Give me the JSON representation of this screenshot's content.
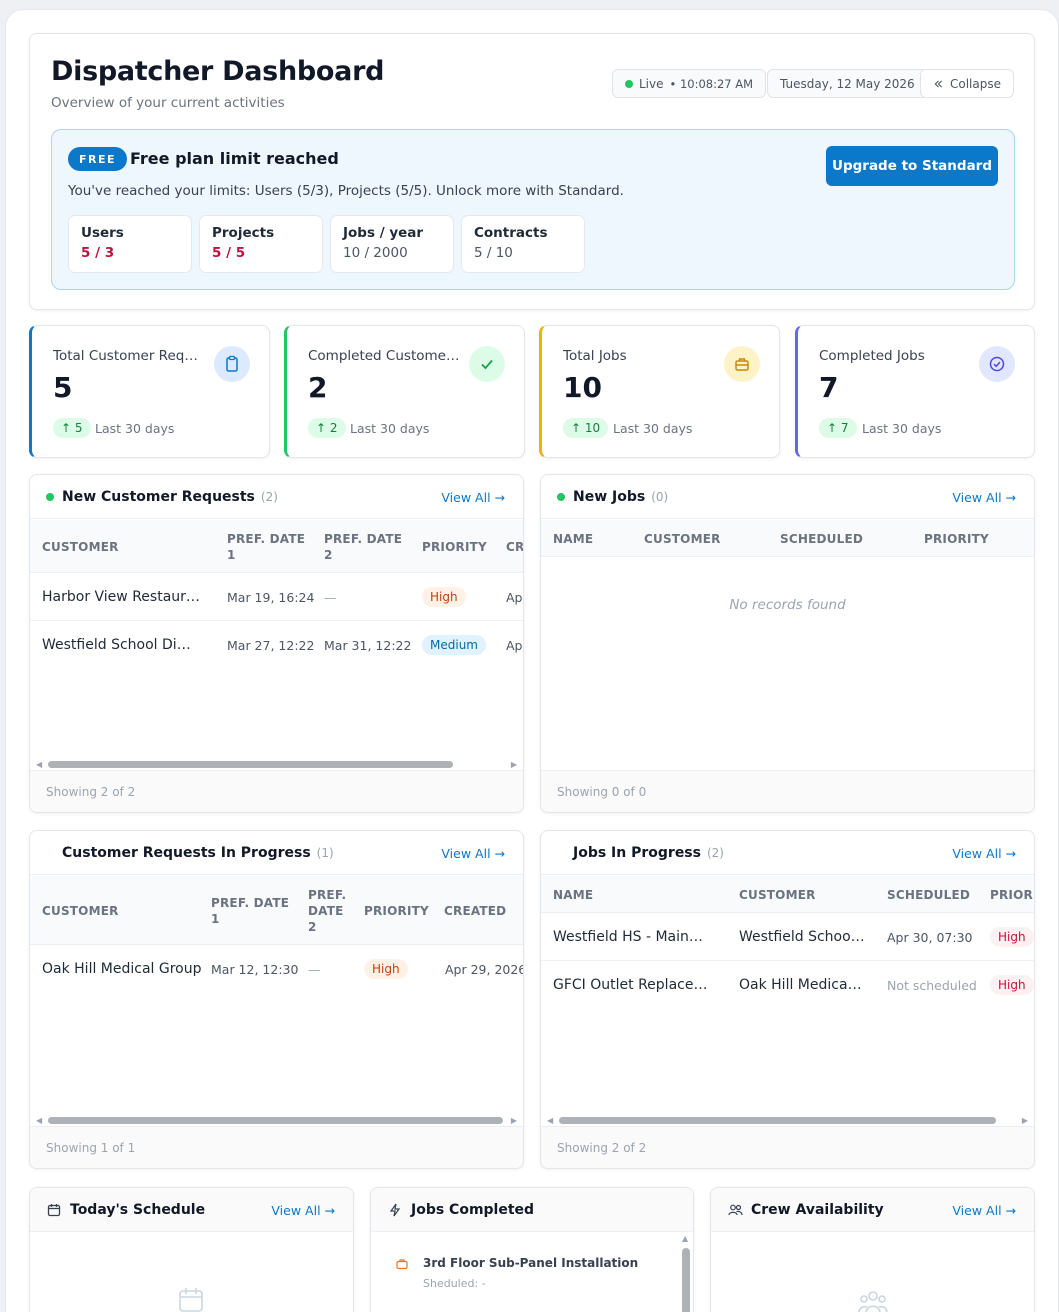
{
  "header": {
    "title": "Dispatcher Dashboard",
    "subtitle": "Overview of your current activities",
    "live_label": "Live",
    "live_time": "• 10:08:27 AM",
    "date": "Tuesday, 12 May 2026",
    "collapse_label": "Collapse"
  },
  "plan": {
    "badge": "FREE",
    "title": "Free plan limit reached",
    "message": "You've reached your limits: Users (5/3), Projects (5/5). Unlock more with Standard.",
    "upgrade_label": "Upgrade to Standard",
    "limits": [
      {
        "label": "Users",
        "value": "5 / 3",
        "over": true
      },
      {
        "label": "Projects",
        "value": "5 / 5",
        "over": true
      },
      {
        "label": "Jobs / year",
        "value": "10 / 2000",
        "over": false
      },
      {
        "label": "Contracts",
        "value": "5 / 10",
        "over": false
      }
    ]
  },
  "stats": [
    {
      "label": "Total Customer Requests",
      "value": "5",
      "delta": "↑ 5",
      "period": "Last 30 days",
      "accent": "#0b78c9",
      "icon": "clipboard-icon"
    },
    {
      "label": "Completed Customer Requests",
      "value": "2",
      "delta": "↑ 2",
      "period": "Last 30 days",
      "accent": "#22c55e",
      "icon": "check-icon"
    },
    {
      "label": "Total Jobs",
      "value": "10",
      "delta": "↑ 10",
      "period": "Last 30 days",
      "accent": "#eab308",
      "icon": "toolbox-icon"
    },
    {
      "label": "Completed Jobs",
      "value": "7",
      "delta": "↑ 7",
      "period": "Last 30 days",
      "accent": "#6366f1",
      "icon": "check-circle-icon"
    }
  ],
  "new_requests": {
    "title": "New Customer Requests",
    "count": "(2)",
    "view_all": "View All →",
    "columns": [
      "CUSTOMER",
      "PREF. DATE 1",
      "PREF. DATE 2",
      "PRIORITY",
      "CR"
    ],
    "rows": [
      {
        "customer": "Harbor View Restaurant Group",
        "date1": "Mar 19, 16:24",
        "date2": "—",
        "priority": "High",
        "created": "Apr"
      },
      {
        "customer": "Westfield School District",
        "date1": "Mar 27, 12:22",
        "date2": "Mar 31, 12:22",
        "priority": "Medium",
        "created": "Apr"
      }
    ],
    "footer": "Showing 2 of 2"
  },
  "new_jobs": {
    "title": "New Jobs",
    "count": "(0)",
    "view_all": "View All →",
    "columns": [
      "NAME",
      "CUSTOMER",
      "SCHEDULED",
      "PRIORITY"
    ],
    "empty": "No records found",
    "footer": "Showing 0 of 0"
  },
  "requests_in_progress": {
    "title": "Customer Requests In Progress",
    "count": "(1)",
    "view_all": "View All →",
    "columns": [
      "CUSTOMER",
      "PREF. DATE 1",
      "PREF. DATE 2",
      "PRIORITY",
      "CREATED"
    ],
    "rows": [
      {
        "customer": "Oak Hill Medical Group",
        "date1": "Mar 12, 12:30",
        "date2": "—",
        "priority": "High",
        "created": "Apr 29, 2026"
      }
    ],
    "footer": "Showing 1 of 1"
  },
  "jobs_in_progress": {
    "title": "Jobs In Progress",
    "count": "(2)",
    "view_all": "View All →",
    "columns": [
      "NAME",
      "CUSTOMER",
      "SCHEDULED",
      "PRIORITY"
    ],
    "rows": [
      {
        "name": "Westfield HS - Main Panel Upgrade",
        "customer": "Westfield School District",
        "scheduled": "Apr 30, 07:30",
        "priority": "High"
      },
      {
        "name": "GFCI Outlet Replacement",
        "customer": "Oak Hill Medical Group",
        "scheduled": "Not scheduled",
        "priority": "High"
      }
    ],
    "footer": "Showing 2 of 2"
  },
  "schedule": {
    "title": "Today's Schedule",
    "view_all": "View All →"
  },
  "jobs_completed": {
    "title": "Jobs Completed",
    "item_title": "3rd Floor Sub-Panel Installation",
    "item_sub": "Sheduled: -"
  },
  "crew": {
    "title": "Crew Availability",
    "view_all": "View All →"
  }
}
